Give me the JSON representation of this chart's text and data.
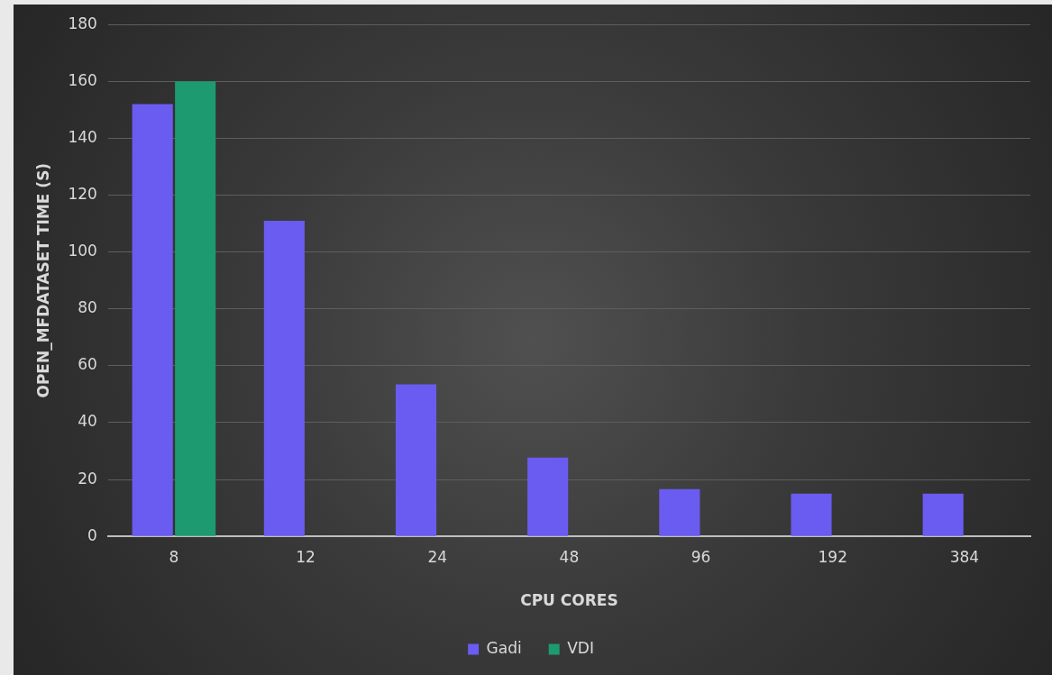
{
  "chart_data": {
    "type": "bar",
    "xlabel": "CPU CORES",
    "ylabel": "OPEN_MFDATASET TIME (S)",
    "categories": [
      "8",
      "12",
      "24",
      "48",
      "96",
      "192",
      "384"
    ],
    "series": [
      {
        "name": "Gadi",
        "color": "#6a5cf0",
        "values": [
          152,
          111,
          53.5,
          27.7,
          16.6,
          15,
          15
        ]
      },
      {
        "name": "VDI",
        "color": "#1e9a70",
        "values": [
          160,
          null,
          null,
          null,
          null,
          null,
          null
        ]
      }
    ],
    "ylim": [
      0,
      180
    ],
    "yticks": [
      0,
      20,
      40,
      60,
      80,
      100,
      120,
      140,
      160,
      180
    ],
    "grid": "y",
    "legend": "bottom"
  }
}
